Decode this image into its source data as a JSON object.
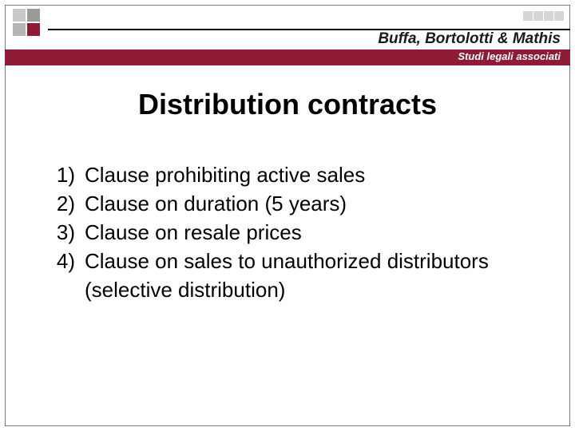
{
  "brand": {
    "firm_name": "Buffa, Bortolotti & Mathis",
    "subtitle": "Studi legali associati",
    "colors": {
      "maroon": "#8e1a35",
      "grey_light": "#c9c7c7",
      "grey_mid": "#9c9a98",
      "grey_mid2": "#b7b5b3",
      "mini_grey": "#d8d6d5",
      "rule": "#000000"
    }
  },
  "slide": {
    "title": "Distribution contracts",
    "items": [
      {
        "num": "1)",
        "text": "Clause prohibiting active sales"
      },
      {
        "num": "2)",
        "text": "Clause on duration (5 years)"
      },
      {
        "num": "3)",
        "text": "Clause on resale prices"
      },
      {
        "num": "4)",
        "text": "Clause on sales to unauthorized distributors (selective distribution)"
      }
    ]
  },
  "typography": {
    "title_fontsize": 36,
    "body_fontsize": 26,
    "firm_fontsize": 19,
    "subtitle_fontsize": 13
  }
}
